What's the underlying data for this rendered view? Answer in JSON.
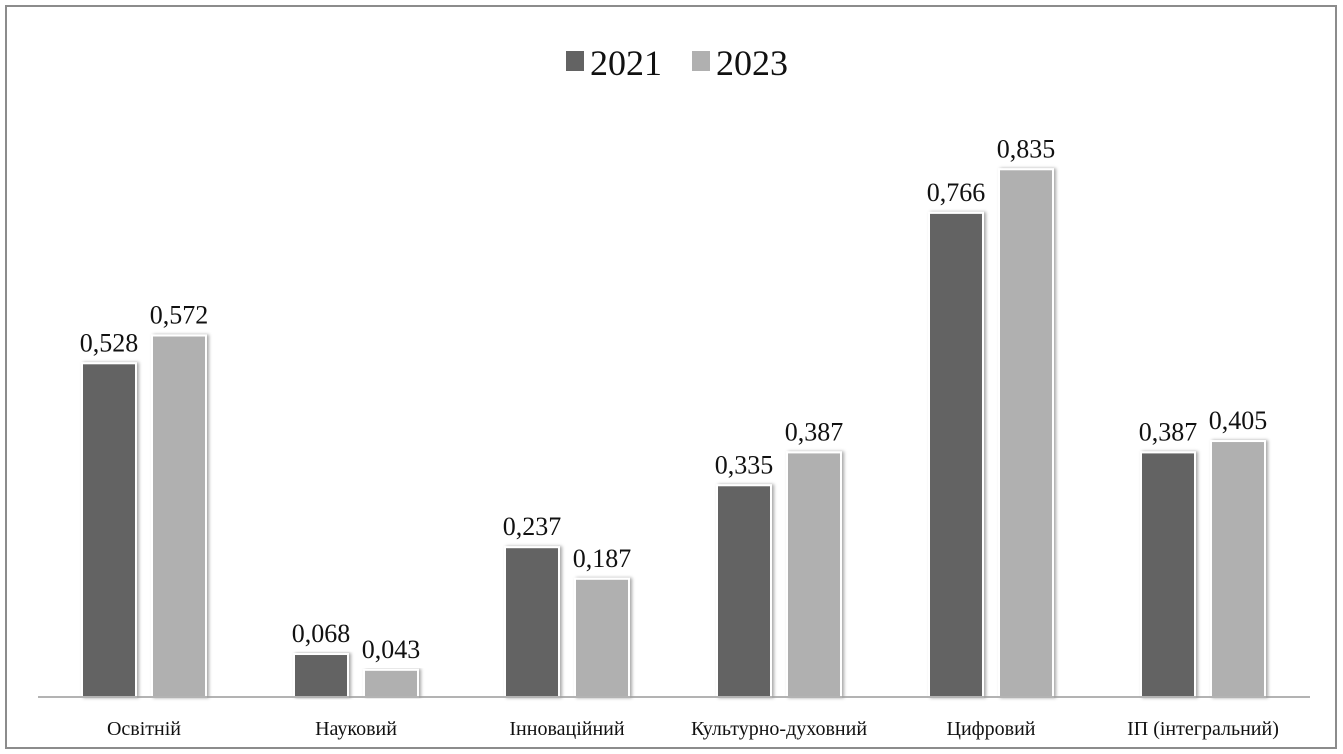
{
  "chart_data": {
    "type": "bar",
    "categories": [
      "Освітній",
      "Науковий",
      "Інноваційний",
      "Культурно-духовний",
      "Цифровий",
      "ІП (інтегральний)"
    ],
    "series": [
      {
        "name": "2021",
        "values": [
          "0,528",
          "0,068",
          "0,237",
          "0,335",
          "0,766",
          "0,387"
        ],
        "numeric": [
          0.528,
          0.068,
          0.237,
          0.335,
          0.766,
          0.387
        ],
        "color": "#636363"
      },
      {
        "name": "2023",
        "values": [
          "0,572",
          "0,043",
          "0,187",
          "0,387",
          "0,835",
          "0,405"
        ],
        "numeric": [
          0.572,
          0.043,
          0.187,
          0.387,
          0.835,
          0.405
        ],
        "color": "#b0b0b0"
      }
    ],
    "ylim": [
      0,
      1
    ],
    "grid": false,
    "legend": "top-center",
    "data_labels": true
  }
}
